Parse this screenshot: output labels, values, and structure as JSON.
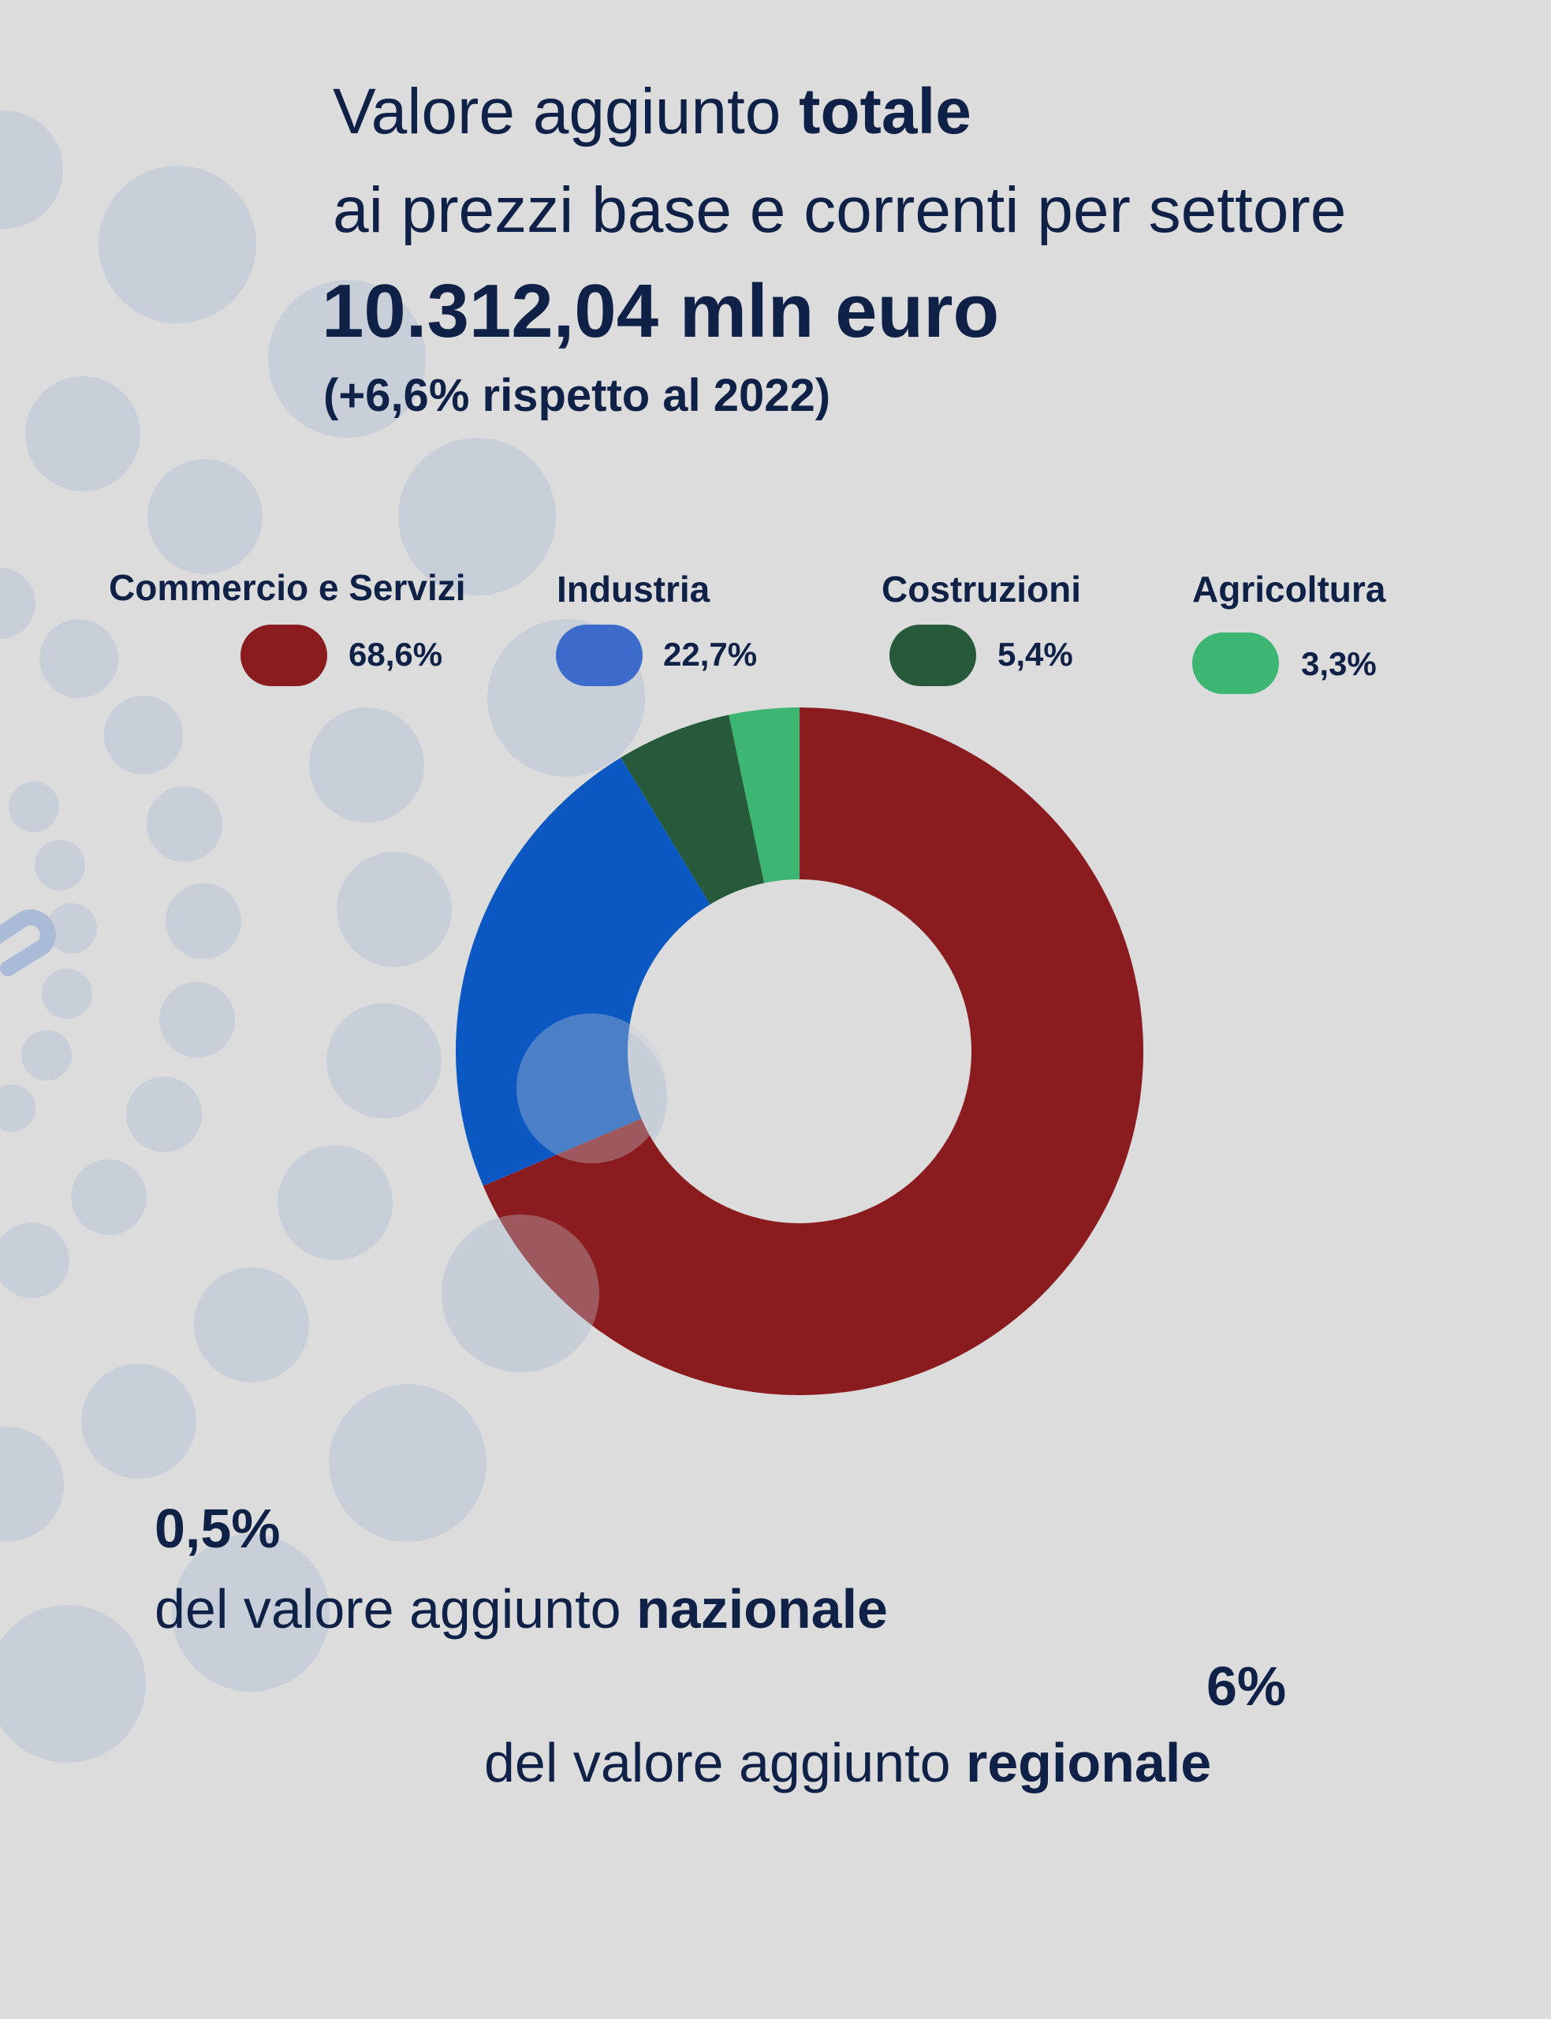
{
  "header": {
    "title_line1_pre": "Valore aggiunto ",
    "title_line1_bold": "totale",
    "title_line2": "ai prezzi base  e correnti  per settore",
    "total": "10.312,04 mln euro",
    "change": "(+6,6% rispetto al 2022)"
  },
  "colors": {
    "background": "#dcdcdc",
    "text": "#0f2147",
    "commercio": "#8a1c1f",
    "industria": "#0b58c2",
    "industria_legend": "#3d6bcc",
    "costruzioni": "#265a3a",
    "agricoltura": "#3cb672"
  },
  "legend": [
    {
      "label": "Commercio e Servizi",
      "value": "68,6%"
    },
    {
      "label": "Industria",
      "value": "22,7%"
    },
    {
      "label": "Costruzioni",
      "value": "5,4%"
    },
    {
      "label": "Agricoltura",
      "value": "3,3%"
    }
  ],
  "chart_data": {
    "type": "pie",
    "variant": "donut",
    "categories": [
      "Commercio e Servizi",
      "Industria",
      "Costruzioni",
      "Agricoltura"
    ],
    "values": [
      68.6,
      22.7,
      5.4,
      3.3
    ],
    "unit": "%",
    "legend_position": "top"
  },
  "stats": {
    "national_value": "0,5%",
    "national_pre": "del valore aggiunto ",
    "national_bold": "nazionale",
    "regional_value": "6%",
    "regional_pre": "del valore aggiunto ",
    "regional_bold": "regionale"
  }
}
